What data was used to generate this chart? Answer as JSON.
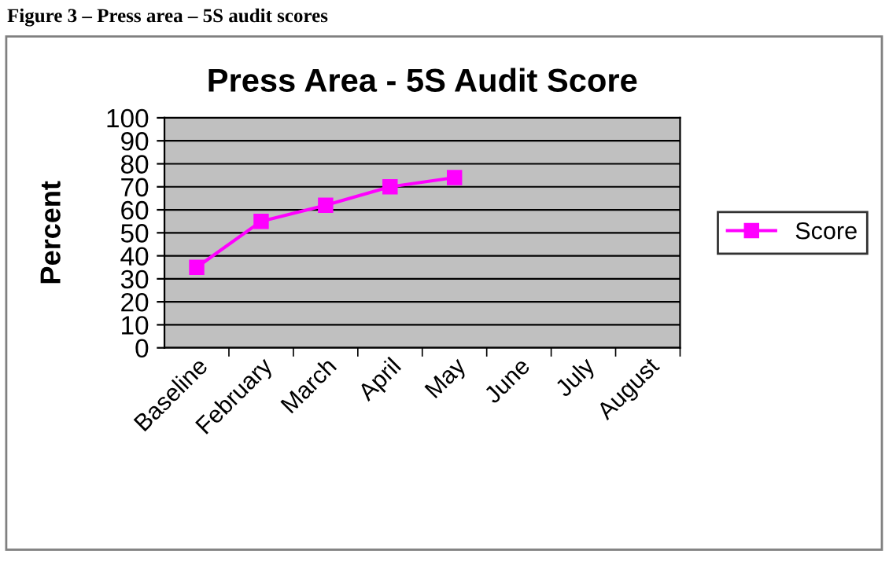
{
  "chart_data": {
    "type": "line",
    "title": "Press Area - 5S Audit Score",
    "ylabel": "Percent",
    "annotations": [
      "Figure 3 – Press area – 5S audit scores"
    ],
    "categories": [
      "Baseline",
      "February",
      "March",
      "April",
      "May",
      "June",
      "July",
      "August"
    ],
    "series": [
      {
        "name": "Score",
        "color": "#ff00ff",
        "values": [
          35,
          55,
          62,
          70,
          74,
          null,
          null,
          null
        ]
      }
    ],
    "ylim": [
      0,
      100
    ],
    "yticks": [
      0,
      10,
      20,
      30,
      40,
      50,
      60,
      70,
      80,
      90,
      100
    ],
    "grid": "y",
    "legend": "right",
    "marker": "square",
    "line_style": "solid"
  }
}
